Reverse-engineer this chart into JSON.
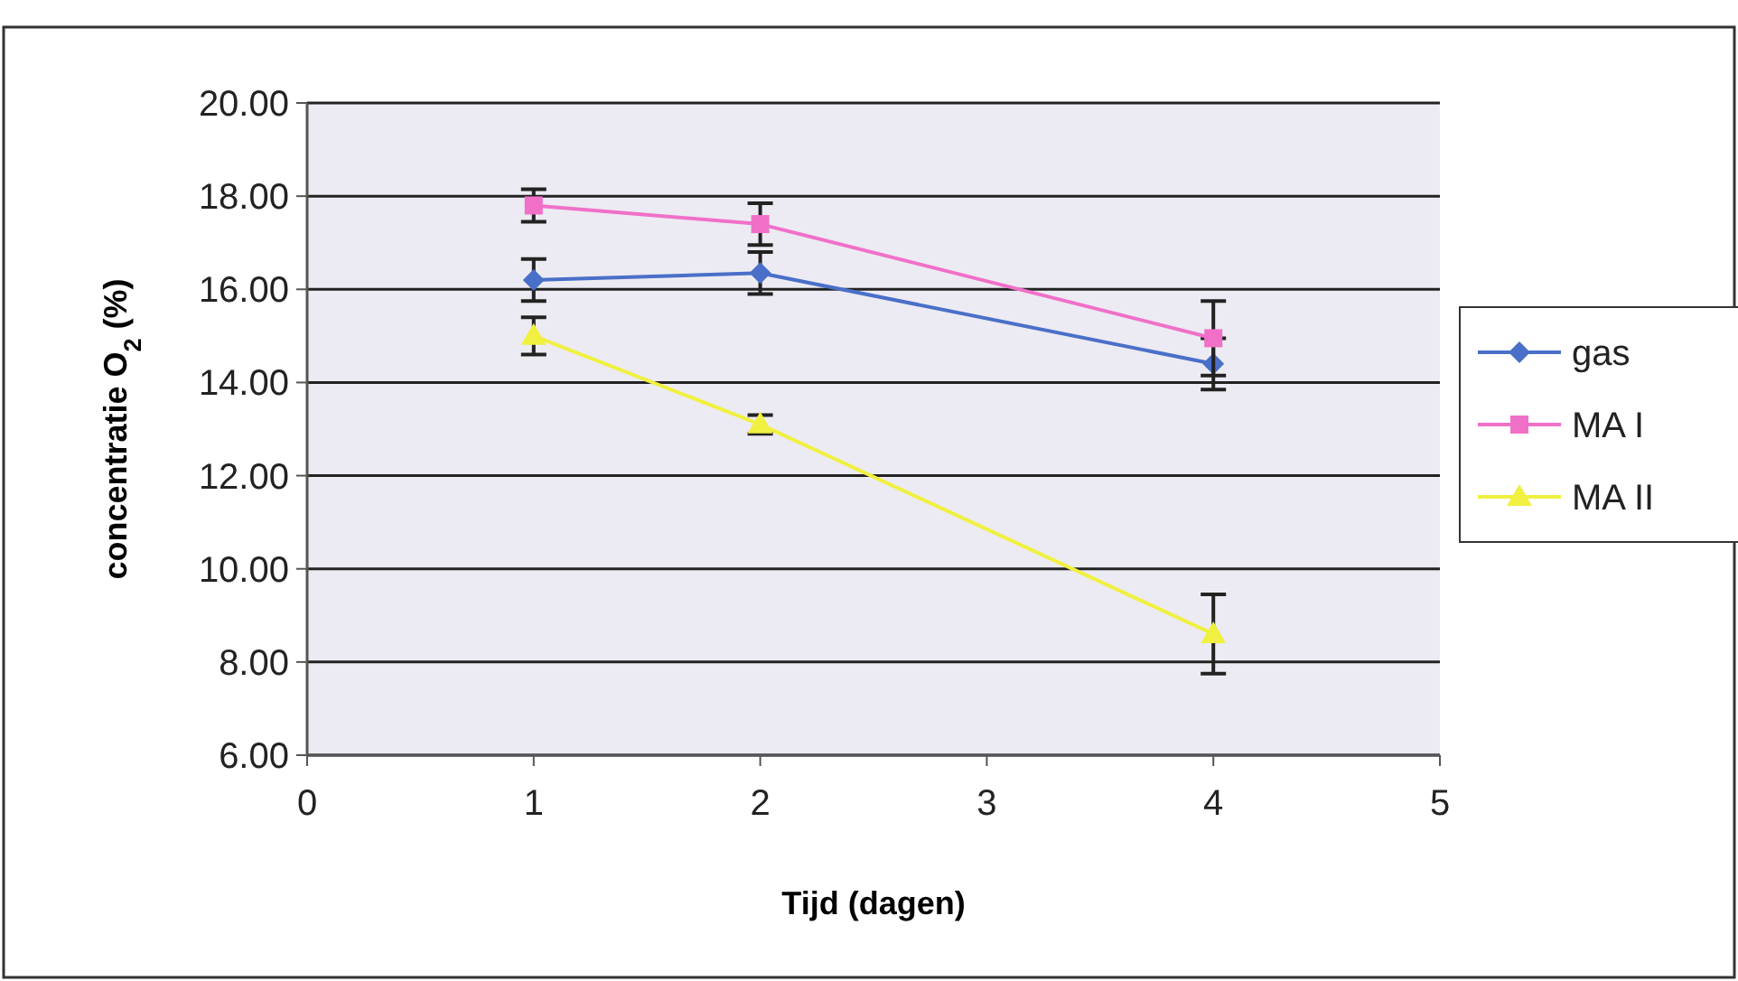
{
  "chart_data": {
    "type": "line",
    "xlabel": "Tijd (dagen)",
    "ylabel": "concentratie O$_{2}$ (%)",
    "xlim": [
      0,
      5
    ],
    "xticks": [
      0,
      1,
      2,
      3,
      4,
      5
    ],
    "ylim": [
      6,
      20
    ],
    "yticks": [
      {
        "value": 6,
        "label": "6.00"
      },
      {
        "value": 8,
        "label": "8.00"
      },
      {
        "value": 10,
        "label": "10.00"
      },
      {
        "value": 12,
        "label": "12.00"
      },
      {
        "value": 14,
        "label": "14.00"
      },
      {
        "value": 16,
        "label": "16.00"
      },
      {
        "value": 18,
        "label": "18.00"
      },
      {
        "value": 20,
        "label": "20.00"
      }
    ],
    "grid": "y",
    "legend": "right",
    "x": [
      1,
      2,
      4
    ],
    "series": [
      {
        "name": "gas",
        "color": "#4a6fc8",
        "marker": "diamond",
        "values": [
          16.2,
          16.35,
          14.4
        ],
        "errors": [
          0.45,
          0.45,
          0.55
        ]
      },
      {
        "name": "MA I",
        "color": "#f070c8",
        "marker": "square",
        "values": [
          17.8,
          17.4,
          14.95
        ],
        "errors": [
          0.35,
          0.45,
          0.8
        ]
      },
      {
        "name": "MA II",
        "color": "#f0f040",
        "marker": "triangle",
        "values": [
          15.0,
          13.1,
          8.6
        ],
        "errors": [
          0.4,
          0.2,
          0.85
        ]
      }
    ]
  }
}
